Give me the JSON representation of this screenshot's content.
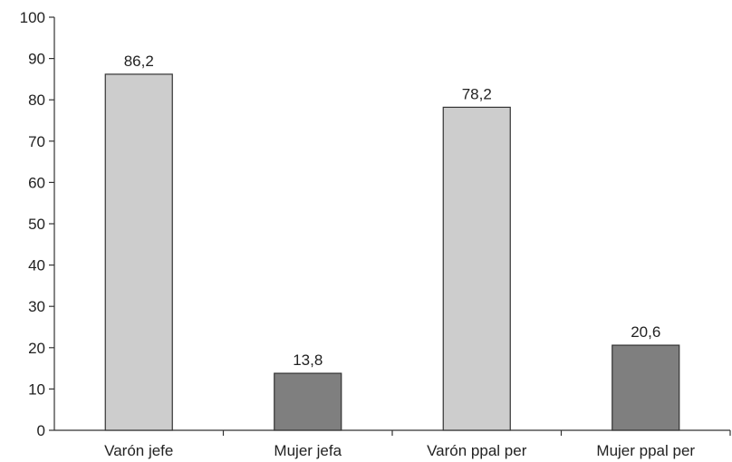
{
  "chart_data": {
    "type": "bar",
    "categories": [
      "Varón jefe",
      "Mujer jefa",
      "Varón ppal per",
      "Mujer ppal per"
    ],
    "values": [
      86.2,
      13.8,
      78.2,
      20.6
    ],
    "value_labels": [
      "86,2",
      "13,8",
      "78,2",
      "20,6"
    ],
    "bar_colors": [
      "#cdcdcd",
      "#7f7f7f",
      "#cdcdcd",
      "#7f7f7f"
    ],
    "bar_stroke": "#333333",
    "title": "",
    "xlabel": "",
    "ylabel": "",
    "ylim": [
      0,
      100
    ],
    "yticks": [
      0,
      10,
      20,
      30,
      40,
      50,
      60,
      70,
      80,
      90,
      100
    ],
    "grid": false,
    "legend": "none"
  }
}
